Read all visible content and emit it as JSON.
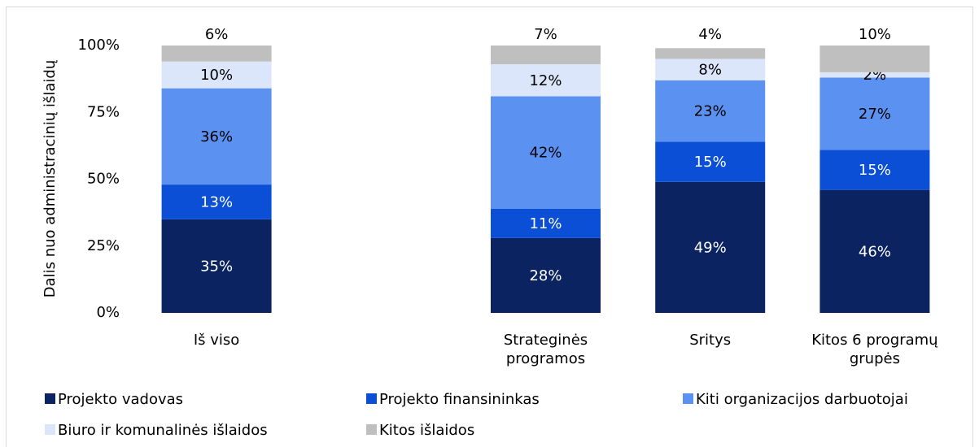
{
  "chart_data": {
    "type": "stacked_bar",
    "y_label": "Dalis nuo administracinių išlaidų",
    "categories": [
      "Iš viso",
      null,
      "Strateginės programos",
      "Sritys",
      "Kitos 6 programų grupės"
    ],
    "series": [
      {
        "name": "Projekto vadovas",
        "color": "#0b2360",
        "values": [
          35,
          null,
          28,
          49,
          46
        ],
        "value_labels": [
          "35%",
          null,
          "28%",
          "49%",
          "46%"
        ]
      },
      {
        "name": "Projekto finansininkas",
        "color": "#0a4fd6",
        "values": [
          13,
          null,
          11,
          15,
          15
        ],
        "value_labels": [
          "13%",
          null,
          "11%",
          "15%",
          "15%"
        ]
      },
      {
        "name": "Kiti organizacijos darbuotojai",
        "color": "#5b92f2",
        "values": [
          36,
          null,
          42,
          23,
          27
        ],
        "value_labels": [
          "36%",
          null,
          "42%",
          "23%",
          "27%"
        ]
      },
      {
        "name": "Biuro ir komunalinės išlaidos",
        "color": "#dce6fb",
        "values": [
          10,
          null,
          12,
          8,
          2
        ],
        "value_labels": [
          "10%",
          null,
          "12%",
          "8%",
          "2%"
        ]
      },
      {
        "name": "Kitos išlaidos",
        "color": "#bfbfbf",
        "values": [
          6,
          null,
          7,
          4,
          10
        ],
        "value_labels": [
          "6%",
          null,
          "7%",
          "4%",
          "10%"
        ]
      }
    ],
    "ylim": [
      0,
      100
    ],
    "yticks": [
      {
        "value": 0,
        "label": "0%"
      },
      {
        "value": 25,
        "label": "25%"
      },
      {
        "value": 50,
        "label": "50%"
      },
      {
        "value": 75,
        "label": "75%"
      },
      {
        "value": 100,
        "label": "100%"
      }
    ],
    "legend": "bottom"
  }
}
